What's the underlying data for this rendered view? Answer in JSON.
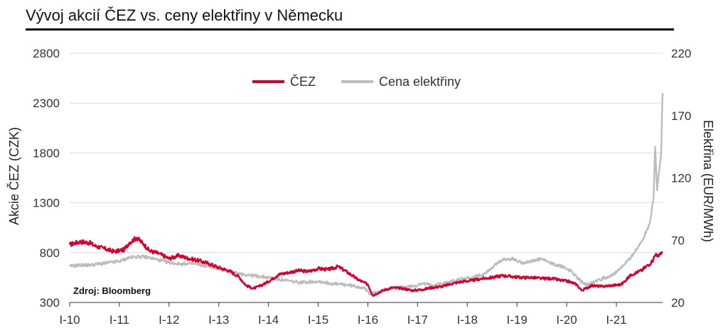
{
  "title": "Vývoj akcií ČEZ vs. ceny elektřiny v Německu",
  "source": "Zdroj: Bloomberg",
  "chart_data": {
    "type": "line",
    "title": "Vývoj akcií ČEZ vs. ceny elektřiny v Německu",
    "xlabel": "",
    "ylabel": "Akcie ČEZ (CZK)",
    "y2label": "Elektřina (EUR/MWh)",
    "ylim": [
      300,
      2800
    ],
    "y2lim": [
      20,
      220
    ],
    "yticks": [
      300,
      800,
      1300,
      1800,
      2300,
      2800
    ],
    "y2ticks": [
      20,
      70,
      120,
      170,
      220
    ],
    "xlim": [
      2010,
      2021.93
    ],
    "xticks": [
      {
        "x": 2010,
        "label": "I-10"
      },
      {
        "x": 2011,
        "label": "I-11"
      },
      {
        "x": 2012,
        "label": "I-12"
      },
      {
        "x": 2013,
        "label": "I-13"
      },
      {
        "x": 2014,
        "label": "I-14"
      },
      {
        "x": 2015,
        "label": "I-15"
      },
      {
        "x": 2016,
        "label": "I-16"
      },
      {
        "x": 2017,
        "label": "I-17"
      },
      {
        "x": 2018,
        "label": "I-18"
      },
      {
        "x": 2019,
        "label": "I-19"
      },
      {
        "x": 2020,
        "label": "I-20"
      },
      {
        "x": 2021,
        "label": "I-21"
      }
    ],
    "grid": "horizontal",
    "legend": "top-center",
    "series": [
      {
        "name": "ČEZ",
        "axis": "left",
        "color": "#d7002e",
        "x": [
          2010.0,
          2010.2,
          2010.4,
          2010.5,
          2010.7,
          2010.9,
          2011.1,
          2011.2,
          2011.35,
          2011.5,
          2011.6,
          2011.8,
          2012.0,
          2012.2,
          2012.4,
          2012.6,
          2012.8,
          2013.0,
          2013.2,
          2013.4,
          2013.55,
          2013.7,
          2013.85,
          2014.0,
          2014.2,
          2014.4,
          2014.6,
          2014.8,
          2015.0,
          2015.2,
          2015.4,
          2015.6,
          2015.8,
          2016.0,
          2016.1,
          2016.3,
          2016.5,
          2016.7,
          2016.9,
          2017.1,
          2017.3,
          2017.5,
          2017.7,
          2017.9,
          2018.1,
          2018.3,
          2018.5,
          2018.7,
          2018.9,
          2019.1,
          2019.3,
          2019.5,
          2019.7,
          2019.9,
          2020.05,
          2020.2,
          2020.3,
          2020.5,
          2020.7,
          2020.9,
          2021.1,
          2021.3,
          2021.5,
          2021.7,
          2021.8,
          2021.85,
          2021.93
        ],
        "values": [
          880,
          910,
          900,
          870,
          840,
          810,
          830,
          900,
          950,
          880,
          820,
          790,
          740,
          770,
          740,
          720,
          690,
          650,
          620,
          560,
          470,
          440,
          470,
          510,
          580,
          600,
          620,
          610,
          640,
          630,
          660,
          600,
          530,
          480,
          370,
          420,
          450,
          440,
          420,
          430,
          450,
          460,
          490,
          510,
          520,
          540,
          550,
          570,
          560,
          550,
          550,
          540,
          540,
          520,
          510,
          480,
          420,
          470,
          460,
          470,
          480,
          580,
          620,
          700,
          790,
          760,
          810
        ]
      },
      {
        "name": "Cena elektřiny",
        "axis": "right",
        "color": "#bcbcbc",
        "x": [
          2010.0,
          2010.2,
          2010.4,
          2010.6,
          2010.8,
          2011.0,
          2011.2,
          2011.4,
          2011.6,
          2011.8,
          2012.0,
          2012.2,
          2012.5,
          2012.8,
          2013.0,
          2013.3,
          2013.6,
          2014.0,
          2014.3,
          2014.6,
          2015.0,
          2015.3,
          2015.6,
          2015.9,
          2016.05,
          2016.2,
          2016.4,
          2016.7,
          2016.9,
          2017.1,
          2017.3,
          2017.5,
          2017.7,
          2017.9,
          2018.1,
          2018.3,
          2018.5,
          2018.7,
          2018.9,
          2019.1,
          2019.3,
          2019.5,
          2019.7,
          2019.9,
          2020.1,
          2020.2,
          2020.4,
          2020.6,
          2020.8,
          2021.0,
          2021.2,
          2021.4,
          2021.55,
          2021.68,
          2021.75,
          2021.78,
          2021.82,
          2021.86,
          2021.9,
          2021.93
        ],
        "values": [
          49,
          50,
          50,
          51,
          52,
          53,
          56,
          57,
          56,
          54,
          52,
          51,
          51,
          49,
          47,
          44,
          42,
          40,
          38,
          36,
          37,
          35,
          34,
          32,
          27,
          28,
          31,
          32,
          33,
          35,
          34,
          35,
          37,
          39,
          40,
          42,
          48,
          54,
          55,
          52,
          53,
          55,
          51,
          49,
          45,
          40,
          34,
          38,
          40,
          44,
          52,
          62,
          72,
          85,
          105,
          145,
          110,
          125,
          140,
          188
        ]
      }
    ]
  }
}
